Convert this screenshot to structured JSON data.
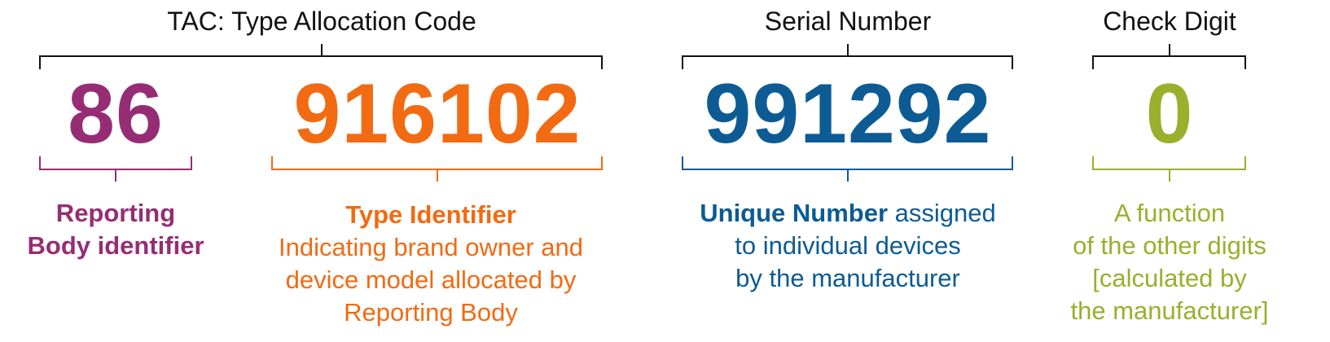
{
  "colors": {
    "tac": "#111111",
    "reporting_body": "#962d74",
    "type_identifier": "#f26a12",
    "serial": "#0d5b94",
    "check_digit": "#9aaf2c"
  },
  "top_labels": {
    "tac": "TAC: Type Allocation Code",
    "serial": "Serial Number",
    "check": "Check Digit"
  },
  "numbers": {
    "reporting_body": "86",
    "type_identifier": "916102",
    "serial": "991292",
    "check_digit": "0"
  },
  "descriptions": {
    "reporting_body": {
      "line1": "Reporting",
      "line2": "Body identifier"
    },
    "type_identifier": {
      "title": "Type Identifier",
      "line1": "Indicating brand owner and",
      "line2": "device model allocated by",
      "line3": "Reporting Body"
    },
    "serial": {
      "bold": "Unique Number",
      "line1_rest": " assigned",
      "line2": "to individual devices",
      "line3": "by the manufacturer"
    },
    "check_digit": {
      "line1": "A function",
      "line2": "of the other digits",
      "line3": "[calculated by",
      "line4": "the manufacturer]"
    }
  }
}
